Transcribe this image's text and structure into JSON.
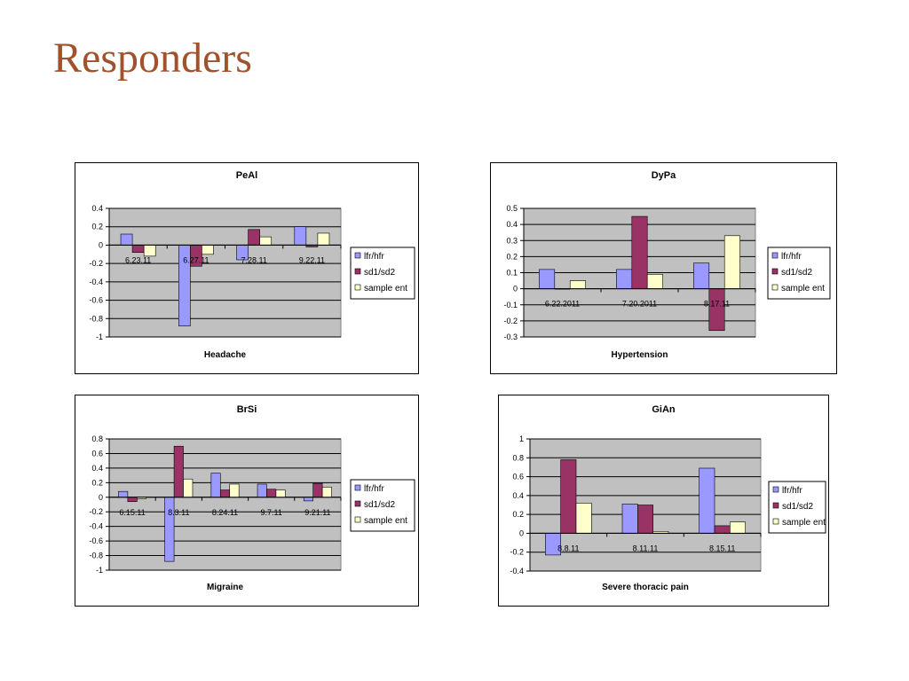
{
  "slide": {
    "title": "Responders"
  },
  "colors": {
    "lfr_hfr": "#9999ff",
    "sd1_sd2": "#993366",
    "sample_ent": "#ffffcc",
    "plot_bg": "#c0c0c0"
  },
  "chart_data": [
    {
      "type": "bar",
      "title": "PeAl",
      "xlabel": "Headache",
      "ylabel": "",
      "categories": [
        "6.23.11",
        "6.27.11",
        "7.28.11",
        "9.22.11"
      ],
      "ylim": [
        -1,
        0.4
      ],
      "yticks": [
        "0.4",
        "0.2",
        "0",
        "-0.2",
        "-0.4",
        "-0.6",
        "-0.8",
        "-1"
      ],
      "grid": true,
      "legend": "right",
      "series": [
        {
          "name": "lfr/hfr",
          "color": "#9999ff",
          "values": [
            0.12,
            -0.88,
            -0.16,
            0.2
          ]
        },
        {
          "name": "sd1/sd2",
          "color": "#993366",
          "values": [
            -0.08,
            -0.23,
            0.17,
            -0.02
          ]
        },
        {
          "name": "sample ent",
          "color": "#ffffcc",
          "values": [
            -0.12,
            -0.1,
            0.09,
            0.13
          ]
        }
      ]
    },
    {
      "type": "bar",
      "title": "DyPa",
      "xlabel": "Hypertension",
      "ylabel": "",
      "categories": [
        "6.22.2011",
        "7.20.2011",
        "8.17.11"
      ],
      "ylim": [
        -0.3,
        0.5
      ],
      "yticks": [
        "0.5",
        "0.4",
        "0.3",
        "0.2",
        "0.1",
        "0",
        "-0.1",
        "-0.2",
        "-0.3"
      ],
      "grid": true,
      "legend": "right",
      "series": [
        {
          "name": "lfr/hfr",
          "color": "#9999ff",
          "values": [
            0.12,
            0.12,
            0.16
          ]
        },
        {
          "name": "sd1/sd2",
          "color": "#993366",
          "values": [
            0,
            0.45,
            -0.26
          ]
        },
        {
          "name": "sample ent",
          "color": "#ffffcc",
          "values": [
            0.05,
            0.09,
            0.33
          ]
        }
      ]
    },
    {
      "type": "bar",
      "title": "BrSi",
      "xlabel": "Migraine",
      "ylabel": "",
      "categories": [
        "6.15.11",
        "8.3.11",
        "8.24.11",
        "9.7.11",
        "9.21.11"
      ],
      "ylim": [
        -1,
        0.8
      ],
      "yticks": [
        "0.8",
        "0.6",
        "0.4",
        "0.2",
        "0",
        "-0.2",
        "-0.4",
        "-0.6",
        "-0.8",
        "-1"
      ],
      "grid": true,
      "legend": "right",
      "series": [
        {
          "name": "lfr/hfr",
          "color": "#9999ff",
          "values": [
            0.08,
            -0.88,
            0.33,
            0.18,
            -0.05
          ]
        },
        {
          "name": "sd1/sd2",
          "color": "#993366",
          "values": [
            -0.06,
            0.7,
            0.1,
            0.11,
            0.19
          ]
        },
        {
          "name": "sample ent",
          "color": "#ffffcc",
          "values": [
            -0.02,
            0.25,
            0.18,
            0.1,
            0.14
          ]
        }
      ]
    },
    {
      "type": "bar",
      "title": "GiAn",
      "xlabel": "Severe thoracic pain",
      "ylabel": "",
      "categories": [
        "8.8.11",
        "8.11.11",
        "8.15.11"
      ],
      "ylim": [
        -0.4,
        1
      ],
      "yticks": [
        "1",
        "0.8",
        "0.6",
        "0.4",
        "0.2",
        "0",
        "-0.2",
        "-0.4"
      ],
      "grid": true,
      "legend": "right",
      "series": [
        {
          "name": "lfr/hfr",
          "color": "#9999ff",
          "values": [
            -0.23,
            0.31,
            0.69
          ]
        },
        {
          "name": "sd1/sd2",
          "color": "#993366",
          "values": [
            0.78,
            0.3,
            0.08
          ]
        },
        {
          "name": "sample ent",
          "color": "#ffffcc",
          "values": [
            0.32,
            0.02,
            0.12
          ]
        }
      ]
    }
  ]
}
